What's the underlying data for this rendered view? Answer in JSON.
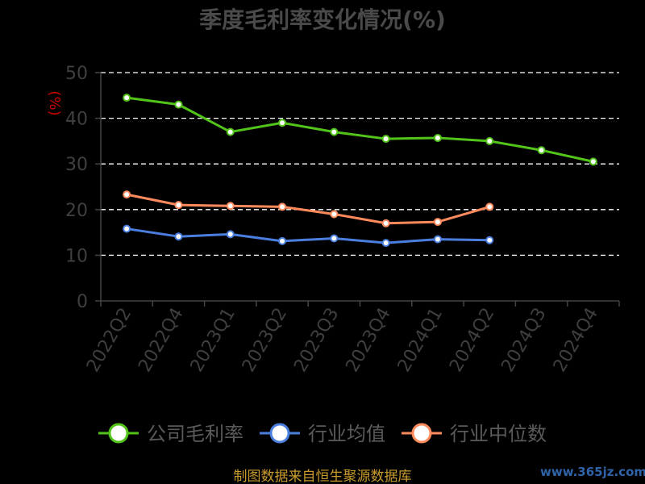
{
  "chart_data": {
    "type": "line",
    "title": "季度毛利率变化情况(%)",
    "ylabel": "(%)",
    "ylim": [
      0,
      50
    ],
    "yticks": [
      0,
      10,
      20,
      30,
      40,
      50
    ],
    "grid": true,
    "legend_position": "bottom",
    "categories": [
      "2022Q2",
      "2022Q4",
      "2023Q1",
      "2023Q2",
      "2023Q3",
      "2023Q4",
      "2024Q1",
      "2024Q2",
      "2024Q3",
      "2024Q4"
    ],
    "series": [
      {
        "name": "公司毛利率",
        "color": "#52c41a",
        "values": [
          44.5,
          43.0,
          37.0,
          39.0,
          37.0,
          35.5,
          35.7,
          35.0,
          33.0,
          30.5
        ]
      },
      {
        "name": "行业均值",
        "color": "#4a7fe0",
        "values": [
          15.8,
          14.1,
          14.6,
          13.1,
          13.7,
          12.7,
          13.5,
          13.3,
          null,
          null
        ]
      },
      {
        "name": "行业中位数",
        "color": "#ff8a5c",
        "values": [
          23.3,
          21.0,
          20.8,
          20.6,
          19.0,
          17.0,
          17.3,
          20.6,
          null,
          null
        ]
      }
    ]
  },
  "footer": {
    "source": "制图数据来自恒生聚源数据库",
    "watermark": "www.365jz.com"
  }
}
